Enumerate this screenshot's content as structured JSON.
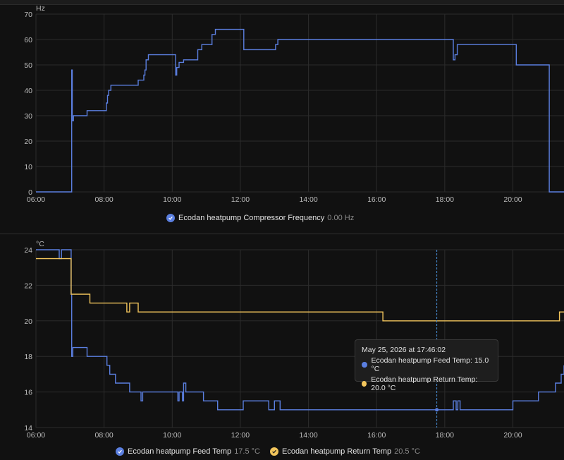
{
  "colors": {
    "feed": "#5b7fe0",
    "ret": "#f2c55c",
    "freq": "#5b7fe0",
    "grid": "#2c2c2c",
    "axis_text": "#bdbdbd",
    "cursor": "#4a90d9"
  },
  "legend": {
    "freq_label": "Ecodan heatpump Compressor Frequency",
    "freq_value": "0.00 Hz",
    "feed_label": "Ecodan heatpump Feed Temp",
    "feed_value": "17.5 °C",
    "ret_label": "Ecodan heatpump Return Temp",
    "ret_value": "20.5 °C",
    "check_icon": "check-icon"
  },
  "tooltip": {
    "title": "May 25, 2026 at 17:46:02",
    "feed_line": "Ecodan heatpump Feed Temp: 15.0 °C",
    "ret_line": "Ecodan heatpump Return Temp: 20.0 °C"
  },
  "chart_data": [
    {
      "type": "line",
      "ylabel": "Hz",
      "xlim": [
        "06:00",
        "21:30"
      ],
      "ylim": [
        0,
        70
      ],
      "x_ticks": [
        "06:00",
        "08:00",
        "10:00",
        "12:00",
        "14:00",
        "16:00",
        "18:00",
        "20:00"
      ],
      "y_ticks": [
        0,
        10,
        20,
        30,
        40,
        50,
        60,
        70
      ],
      "grid": true,
      "series": [
        {
          "name": "Ecodan heatpump Compressor Frequency",
          "step": true,
          "points": [
            [
              "06:00",
              0
            ],
            [
              "07:02",
              0
            ],
            [
              "07:03",
              48
            ],
            [
              "07:04",
              28
            ],
            [
              "07:06",
              30
            ],
            [
              "07:30",
              32
            ],
            [
              "08:04",
              35
            ],
            [
              "08:06",
              38
            ],
            [
              "08:08",
              40
            ],
            [
              "08:12",
              42
            ],
            [
              "09:00",
              44
            ],
            [
              "09:10",
              46
            ],
            [
              "09:12",
              48
            ],
            [
              "09:14",
              52
            ],
            [
              "09:18",
              54
            ],
            [
              "10:05",
              54
            ],
            [
              "10:06",
              46
            ],
            [
              "10:08",
              49
            ],
            [
              "10:12",
              51
            ],
            [
              "10:20",
              52
            ],
            [
              "10:45",
              56
            ],
            [
              "10:52",
              58
            ],
            [
              "11:10",
              62
            ],
            [
              "11:16",
              64
            ],
            [
              "12:05",
              64
            ],
            [
              "12:06",
              56
            ],
            [
              "13:00",
              56
            ],
            [
              "13:02",
              58
            ],
            [
              "13:06",
              60
            ],
            [
              "18:14",
              60
            ],
            [
              "18:15",
              52
            ],
            [
              "18:18",
              54
            ],
            [
              "18:22",
              58
            ],
            [
              "20:05",
              58
            ],
            [
              "20:06",
              50
            ],
            [
              "21:03",
              50
            ],
            [
              "21:04",
              0
            ],
            [
              "21:30",
              0
            ]
          ]
        }
      ]
    },
    {
      "type": "line",
      "ylabel": "°C",
      "xlim": [
        "06:00",
        "21:30"
      ],
      "ylim": [
        14,
        24
      ],
      "x_ticks": [
        "06:00",
        "08:00",
        "10:00",
        "12:00",
        "14:00",
        "16:00",
        "18:00",
        "20:00"
      ],
      "y_ticks": [
        14,
        16,
        18,
        20,
        22,
        24
      ],
      "grid": true,
      "series": [
        {
          "name": "Ecodan heatpump Feed Temp",
          "step": true,
          "points": [
            [
              "06:00",
              24
            ],
            [
              "06:40",
              24
            ],
            [
              "06:41",
              23.5
            ],
            [
              "06:45",
              24
            ],
            [
              "06:55",
              24
            ],
            [
              "07:00",
              24
            ],
            [
              "07:02",
              21.5
            ],
            [
              "07:03",
              18
            ],
            [
              "07:05",
              18.5
            ],
            [
              "07:30",
              18
            ],
            [
              "08:05",
              17.5
            ],
            [
              "08:10",
              17
            ],
            [
              "08:20",
              16.5
            ],
            [
              "08:45",
              16
            ],
            [
              "09:05",
              15.5
            ],
            [
              "09:08",
              16
            ],
            [
              "10:10",
              15.5
            ],
            [
              "10:12",
              16
            ],
            [
              "10:18",
              15.5
            ],
            [
              "10:20",
              16.5
            ],
            [
              "10:24",
              16
            ],
            [
              "10:55",
              15.5
            ],
            [
              "11:20",
              15
            ],
            [
              "12:05",
              15.5
            ],
            [
              "12:50",
              15
            ],
            [
              "13:00",
              15.5
            ],
            [
              "13:10",
              15
            ],
            [
              "18:14",
              15
            ],
            [
              "18:15",
              15.5
            ],
            [
              "18:20",
              15
            ],
            [
              "18:23",
              15.5
            ],
            [
              "18:27",
              15
            ],
            [
              "20:00",
              15.5
            ],
            [
              "20:45",
              16
            ],
            [
              "21:15",
              16.5
            ],
            [
              "21:25",
              17
            ],
            [
              "21:30",
              17.5
            ]
          ]
        },
        {
          "name": "Ecodan heatpump Return Temp",
          "step": true,
          "points": [
            [
              "06:00",
              23.5
            ],
            [
              "07:00",
              23.5
            ],
            [
              "07:02",
              21.5
            ],
            [
              "07:35",
              21
            ],
            [
              "08:40",
              20.5
            ],
            [
              "08:45",
              21
            ],
            [
              "09:00",
              20.5
            ],
            [
              "16:10",
              20.5
            ],
            [
              "16:11",
              20
            ],
            [
              "21:20",
              20
            ],
            [
              "21:22",
              20.5
            ],
            [
              "21:30",
              20.5
            ]
          ]
        }
      ]
    }
  ]
}
